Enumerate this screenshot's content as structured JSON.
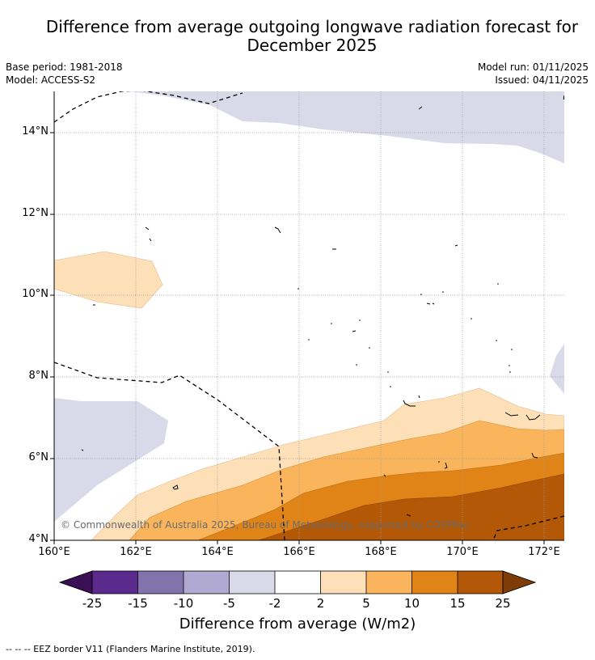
{
  "title": {
    "line1": "Difference from average outgoing longwave radiation forecast for",
    "line2": "December 2025"
  },
  "meta": {
    "base_period": "Base period: 1981-2018",
    "model": "Model: ACCESS-S2",
    "model_run": "Model run: 01/11/2025",
    "issued": "Issued: 04/11/2025"
  },
  "axes": {
    "lat_labels": [
      "14°N",
      "12°N",
      "10°N",
      "8°N",
      "6°N",
      "4°N"
    ],
    "lon_labels": [
      "160°E",
      "162°E",
      "164°E",
      "166°E",
      "168°E",
      "170°E",
      "172°E"
    ]
  },
  "copyright": "© Commonwealth of Australia 2025, Bureau of Meteorology, supported by COSPPac",
  "colorbar": {
    "labels": [
      "-25",
      "-15",
      "-10",
      "-5",
      "-2",
      "2",
      "5",
      "10",
      "15",
      "25"
    ],
    "colors": {
      "extend_low": "#3b0f55",
      "c1": "#5a2a8c",
      "c2": "#8273ad",
      "c3": "#b0a9d2",
      "c4": "#d9d9ea",
      "c5": "#ffffff",
      "c6": "#fde0b8",
      "c7": "#f9b45c",
      "c8": "#e08418",
      "c9": "#b35806",
      "extend_high": "#7f3b08"
    },
    "title": "Difference from average (W/m2)"
  },
  "footer": "--  --  -- EEZ border V11 (Flanders Marine Institute, 2019)."
}
